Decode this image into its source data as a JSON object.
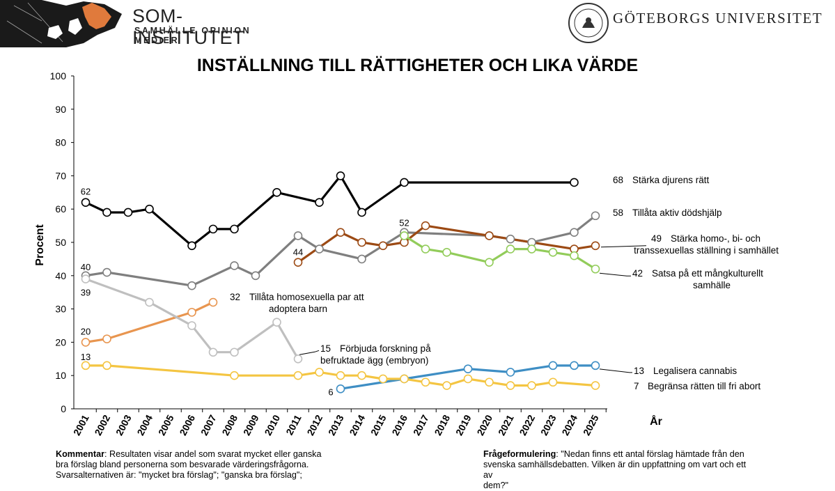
{
  "header": {
    "org_name": "SOM-INSTITUTET",
    "org_tagline": "SAMHÄLLE OPINION MEDIER",
    "university": "GÖTEBORGS UNIVERSITET"
  },
  "chart_data": {
    "type": "line",
    "title": "INSTÄLLNING TILL RÄTTIGHETER OCH LIKA VÄRDE",
    "ylabel": "Procent",
    "xlabel": "År",
    "ylim": [
      0,
      100
    ],
    "yticks": [
      0,
      10,
      20,
      30,
      40,
      50,
      60,
      70,
      80,
      90,
      100
    ],
    "categories": [
      "2001",
      "2002",
      "2003",
      "2004",
      "2005",
      "2006",
      "2007",
      "2008",
      "2009",
      "2010",
      "2011",
      "2012",
      "2013",
      "2014",
      "2015",
      "2016",
      "2017",
      "2018",
      "2019",
      "2020",
      "2021",
      "2022",
      "2023",
      "2024",
      "2025"
    ],
    "series": [
      {
        "name": "Stärka djurens rätt",
        "color": "#000000",
        "points": [
          [
            2001,
            62
          ],
          [
            2002,
            59
          ],
          [
            2003,
            59
          ],
          [
            2004,
            60
          ],
          [
            2006,
            49
          ],
          [
            2007,
            54
          ],
          [
            2008,
            54
          ],
          [
            2010,
            65
          ],
          [
            2012,
            62
          ],
          [
            2013,
            70
          ],
          [
            2014,
            59
          ],
          [
            2016,
            68
          ],
          [
            2024,
            68
          ]
        ]
      },
      {
        "name": "Tillåta aktiv dödshjälp",
        "color": "#7f7f7f",
        "points": [
          [
            2001,
            40
          ],
          [
            2002,
            41
          ],
          [
            2006,
            37
          ],
          [
            2008,
            43
          ],
          [
            2009,
            40
          ],
          [
            2011,
            52
          ],
          [
            2012,
            48
          ],
          [
            2014,
            45
          ],
          [
            2016,
            53
          ],
          [
            2020,
            52
          ],
          [
            2021,
            51
          ],
          [
            2022,
            50
          ],
          [
            2024,
            53
          ],
          [
            2025,
            58
          ]
        ]
      },
      {
        "name": "Stärka homo-, bi- och transsexuellas ställning i samhället",
        "color": "#9c4a14",
        "points": [
          [
            2011,
            44
          ],
          [
            2013,
            53
          ],
          [
            2014,
            50
          ],
          [
            2015,
            49
          ],
          [
            2016,
            50
          ],
          [
            2017,
            55
          ],
          [
            2020,
            52
          ],
          [
            2024,
            48
          ],
          [
            2025,
            49
          ]
        ]
      },
      {
        "name": "Satsa på ett mångkulturellt samhälle",
        "color": "#92cc5a",
        "points": [
          [
            2016,
            52
          ],
          [
            2017,
            48
          ],
          [
            2018,
            47
          ],
          [
            2020,
            44
          ],
          [
            2021,
            48
          ],
          [
            2022,
            48
          ],
          [
            2023,
            47
          ],
          [
            2024,
            46
          ],
          [
            2025,
            42
          ]
        ]
      },
      {
        "name": "Tillåta homosexuella par att adoptera barn",
        "color": "#e8954f",
        "points": [
          [
            2001,
            20
          ],
          [
            2002,
            21
          ],
          [
            2006,
            29
          ],
          [
            2007,
            32
          ]
        ]
      },
      {
        "name": "Förbjuda forskning på befruktade ägg (embryon)",
        "color": "#bfbfbf",
        "points": [
          [
            2001,
            39
          ],
          [
            2004,
            32
          ],
          [
            2006,
            25
          ],
          [
            2007,
            17
          ],
          [
            2008,
            17
          ],
          [
            2010,
            26
          ],
          [
            2011,
            15
          ]
        ]
      },
      {
        "name": "Legalisera cannabis",
        "color": "#3e8ec4",
        "points": [
          [
            2013,
            6
          ],
          [
            2016,
            9
          ],
          [
            2019,
            12
          ],
          [
            2021,
            11
          ],
          [
            2023,
            13
          ],
          [
            2024,
            13
          ],
          [
            2025,
            13
          ]
        ]
      },
      {
        "name": "Begränsa rätten till fri abort",
        "color": "#f4c542",
        "points": [
          [
            2001,
            13
          ],
          [
            2002,
            13
          ],
          [
            2008,
            10
          ],
          [
            2011,
            10
          ],
          [
            2012,
            11
          ],
          [
            2013,
            10
          ],
          [
            2014,
            10
          ],
          [
            2015,
            9
          ],
          [
            2016,
            9
          ],
          [
            2017,
            8
          ],
          [
            2018,
            7
          ],
          [
            2019,
            9
          ],
          [
            2020,
            8
          ],
          [
            2021,
            7
          ],
          [
            2022,
            7
          ],
          [
            2023,
            8
          ],
          [
            2025,
            7
          ]
        ]
      }
    ],
    "value_labels": [
      {
        "text": "62"
      },
      {
        "text": "40"
      },
      {
        "text": "39"
      },
      {
        "text": "20"
      },
      {
        "text": "13"
      },
      {
        "text": "44"
      },
      {
        "text": "52"
      },
      {
        "text": "6"
      }
    ],
    "end_labels": [
      {
        "value": "68",
        "lines": [
          "Stärka djurens rätt"
        ]
      },
      {
        "value": "58",
        "lines": [
          "Tillåta aktiv dödshjälp"
        ]
      },
      {
        "value": "49",
        "lines": [
          "Stärka homo-, bi- och",
          "transsexuellas ställning i samhället"
        ]
      },
      {
        "value": "42",
        "lines": [
          "Satsa på ett mångkulturellt",
          "samhälle"
        ]
      },
      {
        "value": "32",
        "lines": [
          "Tillåta homosexuella par att",
          "adoptera barn"
        ]
      },
      {
        "value": "15",
        "lines": [
          "Förbjuda forskning på",
          "befruktade ägg (embryon)"
        ]
      },
      {
        "value": "13",
        "lines": [
          "Legalisera cannabis"
        ]
      },
      {
        "value": "7",
        "lines": [
          "Begränsa rätten till fri abort"
        ]
      }
    ]
  },
  "comment": {
    "label": "Kommentar",
    "text_line1": ": Resultaten visar andel som svarat mycket eller ganska",
    "text_line2": "bra förslag bland personerna som besvarade värderingsfrågorna.",
    "text_line3": "Svarsalternativen är: \"mycket bra förslag\"; \"ganska bra förslag\";"
  },
  "question": {
    "label": "Frågeformulering",
    "text_line1": ": \"Nedan finns ett antal förslag hämtade från den",
    "text_line2": "svenska samhällsdebatten. Vilken är din uppfattning om vart och ett av",
    "text_line3": "dem?\""
  }
}
